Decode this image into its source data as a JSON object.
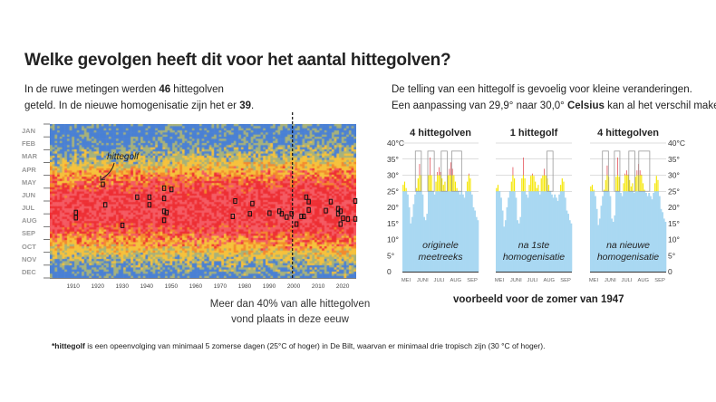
{
  "title": "Welke gevolgen heeft dit voor het aantal hittegolven?",
  "left_text": {
    "pre": "In de ruwe metingen werden ",
    "n_raw": "46",
    "mid": " hittegolven",
    "line2_pre": "geteld. In de nieuwe homogenisatie zijn het er ",
    "n_new": "39",
    "line2_post": "."
  },
  "right_text": {
    "line1": "De telling van een hittegolf is gevoelig voor kleine veranderingen.",
    "line2_pre": "Een aanpassing van 29,9° naar 30,0° ",
    "line2_bold": "Celsius",
    "line2_post": " kan al het verschil maken."
  },
  "caption_century": [
    "Meer dan 40% van alle hittegolven",
    "vond plaats in deze eeuw"
  ],
  "example_caption": "voorbeeld voor de zomer van 1947",
  "footnote": {
    "bold": "*hittegolf",
    "text": " is een opeenvolging van minimaal 5 zomerse dagen (25°C of hoger) in De Bilt, waarvan er minimaal drie tropisch zijn (30 °C of hoger)."
  },
  "chart_data": [
    {
      "type": "heatmap",
      "months": [
        "JAN",
        "FEB",
        "MAR",
        "APR",
        "MAY",
        "JUN",
        "JUL",
        "AUG",
        "SEP",
        "OCT",
        "NOV",
        "DEC"
      ],
      "year_ticks": [
        "1910",
        "1920",
        "1930",
        "1940",
        "1950",
        "1960",
        "1970",
        "1980",
        "1990",
        "2000",
        "2010",
        "2020"
      ],
      "xlim": [
        1901,
        2025
      ],
      "marker_year": 2000,
      "annotation": "hittegolf",
      "colors": {
        "cold": "#4a80d4",
        "mild": "#a8b27a",
        "warm": "#f6c23c",
        "hot": "#f38a2e",
        "very_hot": "#ee2f34"
      },
      "heatwaves_year_month": [
        [
          1911,
          7.4
        ],
        [
          1911,
          7.8
        ],
        [
          1922,
          5.2
        ],
        [
          1923,
          6.8
        ],
        [
          1930,
          8.4
        ],
        [
          1936,
          6.2
        ],
        [
          1941,
          6.2
        ],
        [
          1941,
          6.8
        ],
        [
          1947,
          5.5
        ],
        [
          1947,
          6.3
        ],
        [
          1947,
          7.3
        ],
        [
          1948,
          7.4
        ],
        [
          1947,
          8.0
        ],
        [
          1950,
          5.6
        ],
        [
          1975,
          7.7
        ],
        [
          1976,
          6.5
        ],
        [
          1982,
          7.5
        ],
        [
          1983,
          6.7
        ],
        [
          1990,
          7.45
        ],
        [
          1994,
          7.3
        ],
        [
          1995,
          7.5
        ],
        [
          1997,
          7.75
        ],
        [
          1999,
          7.5
        ],
        [
          2001,
          8.3
        ],
        [
          2003,
          7.7
        ],
        [
          2004,
          7.7
        ],
        [
          2005,
          6.2
        ],
        [
          2006,
          6.55
        ],
        [
          2006,
          7.2
        ],
        [
          2013,
          7.25
        ],
        [
          2015,
          6.55
        ],
        [
          2018,
          7.1
        ],
        [
          2018,
          7.5
        ],
        [
          2019,
          7.3
        ],
        [
          2019,
          8.3
        ],
        [
          2020,
          7.85
        ],
        [
          2022,
          7.9
        ],
        [
          2025,
          6.5
        ],
        [
          2025,
          7.9
        ]
      ]
    },
    {
      "type": "bar",
      "y_ticks": [
        "0",
        "5°",
        "10°",
        "15°",
        "20°",
        "25°",
        "30°",
        "35°",
        "40°C"
      ],
      "ylim": [
        0,
        40
      ],
      "x_ticks": [
        "MEI",
        "JUNI",
        "JULI",
        "AUG",
        "SEP"
      ],
      "thresholds": [
        25,
        30
      ],
      "colors": {
        "base": "#a9d8f2",
        "summer": "#f5e600",
        "tropical": "#e0303a"
      },
      "panels": [
        {
          "title": "4 hittegolven",
          "label": [
            "originele",
            "meetreeks"
          ],
          "values": [
            27,
            28,
            26,
            24,
            20,
            15,
            17,
            21,
            24,
            26,
            29,
            33.5,
            30,
            24,
            17,
            16,
            18,
            30,
            35.5,
            30,
            25,
            24,
            28,
            31,
            32.5,
            31,
            29,
            27,
            28,
            25,
            30,
            32,
            34,
            32,
            30,
            28,
            26,
            25,
            24,
            25,
            24,
            23,
            25,
            28,
            30.5,
            29,
            24,
            20,
            19,
            17,
            16
          ],
          "heatwave_days": [
            [
              26,
              38
            ],
            [
              51,
              64
            ],
            [
              78,
              90
            ],
            [
              99,
              119
            ]
          ]
        },
        {
          "title": "1 hittegolf",
          "label": [
            "na 1ste",
            "homogenisatie"
          ],
          "values": [
            26,
            27,
            25,
            23,
            19,
            14,
            16,
            20,
            23,
            25,
            28,
            32.5,
            29,
            23,
            16,
            15,
            17,
            29,
            35.5,
            29,
            24,
            23,
            27,
            29.8,
            30.5,
            29.8,
            28,
            26,
            27,
            24,
            29,
            29.9,
            32,
            29.9,
            29,
            27,
            25,
            24,
            23,
            24,
            23,
            22,
            24,
            27,
            29,
            28,
            23,
            19,
            18,
            16,
            15
          ],
          "heatwave_days": [
            [
              103,
              115
            ]
          ]
        },
        {
          "title": "4 hittegolven",
          "label": [
            "na nieuwe",
            "homogenisatie"
          ],
          "values": [
            26.5,
            27,
            25.5,
            23.5,
            19.5,
            14.5,
            16.5,
            20.5,
            23.5,
            25.5,
            28.5,
            33,
            29.5,
            23.5,
            16.5,
            15.5,
            17.5,
            29.5,
            35.5,
            29.5,
            24.5,
            23.5,
            27.5,
            30.5,
            31.5,
            30.2,
            28.5,
            26.5,
            27.5,
            24.5,
            29.5,
            31.5,
            33.5,
            31.5,
            30.2,
            27.5,
            25.5,
            24.5,
            23.5,
            24.5,
            23.5,
            22.5,
            24.5,
            27.5,
            29.8,
            28.5,
            23.5,
            19.5,
            18.5,
            16.5,
            15.5
          ],
          "heatwave_days": [
            [
              25,
              37
            ],
            [
              49,
              60
            ],
            [
              78,
              90
            ],
            [
              98,
              120
            ]
          ]
        }
      ]
    }
  ]
}
